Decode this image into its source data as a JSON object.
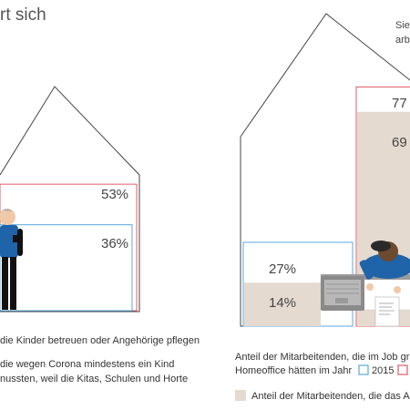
{
  "chart_data": [
    {
      "type": "bar",
      "series": [
        {
          "name": "",
          "values": [
            53,
            36
          ]
        }
      ],
      "annotations": [
        "53%",
        "36%"
      ]
    },
    {
      "type": "bar",
      "categories": [
        "Anteil der Mitarbeitenden, die im Job grundsätzlich Homeoffice hätten",
        "Anteil der Mitarbeitenden, die das Homeoffice nutzten"
      ],
      "series": [
        {
          "name": "2015",
          "values": [
            27,
            77
          ]
        },
        {
          "name": "",
          "values": [
            14,
            69
          ]
        }
      ],
      "annotations": [
        "27%",
        "14%",
        "77",
        "69"
      ]
    }
  ],
  "page": {
    "title": "rt sich",
    "note_line1": "Sieb",
    "note_line2": "arb"
  },
  "left": {
    "value_red": "53%",
    "value_blue": "36%",
    "caption1": "die Kinder betreuen oder Angehörige pflegen",
    "caption2_line1": "die wegen Corona mindestens ein Kind",
    "caption2_line2": "nussten, weil die Kitas, Schulen und Horte"
  },
  "right": {
    "value_blue": "27%",
    "value_fill_small": "14%",
    "value_red": "77",
    "value_fill_big": "69",
    "legend_line1": "Anteil der Mitarbeitenden, die im Job gr",
    "legend_line2_prefix": "Homeoffice hätten im Jahr",
    "legend_year1": "2015",
    "legend_fill_text": "Anteil der Mitarbeitenden, die das A"
  },
  "colors": {
    "red": "#e05a65",
    "blue": "#5aa9dc",
    "fill": "#e4dad0",
    "outline": "#444444",
    "person_shirt": "#1f63a8",
    "paper": "#ffffff",
    "desk": "#9b9b9b"
  }
}
